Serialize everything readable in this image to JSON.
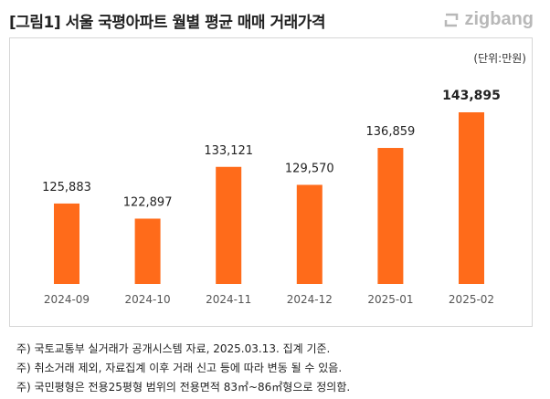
{
  "header": {
    "title": "[그림1] 서울 국평아파트 월별 평균 매매 거래가격",
    "logo": "zigbang"
  },
  "chart_data": {
    "type": "bar",
    "title": "[그림1] 서울 국평아파트 월별 평균 매매 거래가격",
    "unit": "(단위:만원)",
    "categories": [
      "2024-09",
      "2024-10",
      "2024-11",
      "2024-12",
      "2025-01",
      "2025-02"
    ],
    "values": [
      125883,
      122897,
      133121,
      129570,
      136859,
      143895
    ],
    "value_labels": [
      "125,883",
      "122,897",
      "133,121",
      "129,570",
      "136,859",
      "143,895"
    ],
    "highlight_last": true,
    "ylim": [
      110000,
      150000
    ],
    "grid": false,
    "bar_color": "#ff6b1a"
  },
  "notes": [
    "주) 국토교통부 실거래가 공개시스템 자료, 2025.03.13. 집계 기준.",
    "주) 취소거래 제외, 자료집계 이후 거래 신고 등에 따라 변동 될 수 있음.",
    "주) 국민평형은 전용25평형 범위의 전용면적 83㎡~86㎡형으로 정의함."
  ]
}
